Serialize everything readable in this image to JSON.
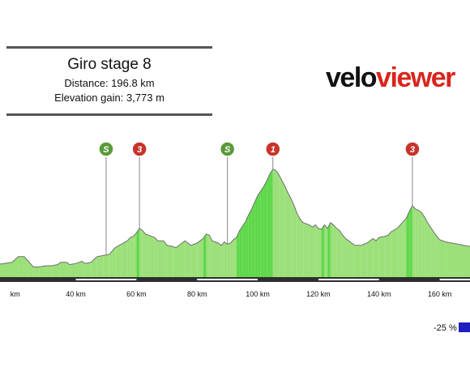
{
  "header": {
    "title": "Giro stage 8",
    "distance": "Distance: 196.8 km",
    "elevation_gain": "Elevation gain: 3,773 m"
  },
  "logo": {
    "part1": "velo",
    "part2": "viewer",
    "color_primary": "#111111",
    "color_accent": "#d9251d"
  },
  "legend": {
    "min_label": "-25 %",
    "min_color": "#1f1fc0"
  },
  "markers": [
    {
      "km": 50,
      "label": "S",
      "kind": "sprint",
      "color": "#5a9a3a"
    },
    {
      "km": 61,
      "label": "3",
      "kind": "climb",
      "color": "#c8342a"
    },
    {
      "km": 90,
      "label": "S",
      "kind": "sprint",
      "color": "#5a9a3a"
    },
    {
      "km": 105,
      "label": "1",
      "kind": "climb",
      "color": "#c8342a"
    },
    {
      "km": 151,
      "label": "3",
      "kind": "climb",
      "color": "#c8342a"
    }
  ],
  "chart_data": {
    "type": "area",
    "title": "Giro stage 8",
    "xlabel": "",
    "ylabel": "",
    "x_unit": "km",
    "xlim": [
      15,
      170
    ],
    "x_ticks": [
      {
        "value": 20,
        "label": "km"
      },
      {
        "value": 40,
        "label": "40 km"
      },
      {
        "value": 60,
        "label": "60 km"
      },
      {
        "value": 80,
        "label": "80 km"
      },
      {
        "value": 100,
        "label": "100 km"
      },
      {
        "value": 120,
        "label": "120 km"
      },
      {
        "value": 140,
        "label": "140 km"
      },
      {
        "value": 160,
        "label": "160 km"
      }
    ],
    "profile": [
      [
        15,
        0.23
      ],
      [
        19,
        0.26
      ],
      [
        21,
        0.36
      ],
      [
        23,
        0.36
      ],
      [
        24,
        0.3
      ],
      [
        26,
        0.18
      ],
      [
        28,
        0.18
      ],
      [
        30,
        0.2
      ],
      [
        32,
        0.2
      ],
      [
        34,
        0.22
      ],
      [
        35,
        0.26
      ],
      [
        37,
        0.26
      ],
      [
        38,
        0.22
      ],
      [
        40,
        0.24
      ],
      [
        42,
        0.28
      ],
      [
        43,
        0.24
      ],
      [
        45,
        0.26
      ],
      [
        47,
        0.36
      ],
      [
        49,
        0.38
      ],
      [
        51,
        0.4
      ],
      [
        52,
        0.46
      ],
      [
        53,
        0.52
      ],
      [
        55,
        0.58
      ],
      [
        57,
        0.64
      ],
      [
        58,
        0.7
      ],
      [
        59,
        0.72
      ],
      [
        60,
        0.78
      ],
      [
        61,
        0.86
      ],
      [
        62,
        0.82
      ],
      [
        63,
        0.76
      ],
      [
        64,
        0.74
      ],
      [
        66,
        0.7
      ],
      [
        67,
        0.64
      ],
      [
        69,
        0.64
      ],
      [
        70,
        0.56
      ],
      [
        72,
        0.54
      ],
      [
        73,
        0.52
      ],
      [
        75,
        0.6
      ],
      [
        76,
        0.64
      ],
      [
        77,
        0.6
      ],
      [
        78,
        0.56
      ],
      [
        80,
        0.6
      ],
      [
        81,
        0.64
      ],
      [
        82,
        0.68
      ],
      [
        83,
        0.76
      ],
      [
        84,
        0.74
      ],
      [
        85,
        0.64
      ],
      [
        87,
        0.6
      ],
      [
        88,
        0.56
      ],
      [
        89,
        0.62
      ],
      [
        90,
        0.58
      ],
      [
        91,
        0.6
      ],
      [
        92,
        0.66
      ],
      [
        93,
        0.7
      ],
      [
        94,
        0.82
      ],
      [
        95,
        0.9
      ],
      [
        96,
        0.98
      ],
      [
        97,
        1.1
      ],
      [
        98,
        1.2
      ],
      [
        99,
        1.32
      ],
      [
        100,
        1.44
      ],
      [
        101,
        1.52
      ],
      [
        102,
        1.6
      ],
      [
        103,
        1.7
      ],
      [
        104,
        1.82
      ],
      [
        105,
        1.9
      ],
      [
        106,
        1.88
      ],
      [
        107,
        1.8
      ],
      [
        108,
        1.7
      ],
      [
        109,
        1.6
      ],
      [
        110,
        1.48
      ],
      [
        111,
        1.38
      ],
      [
        112,
        1.26
      ],
      [
        113,
        1.12
      ],
      [
        114,
        1.02
      ],
      [
        115,
        0.96
      ],
      [
        116,
        0.94
      ],
      [
        117,
        0.92
      ],
      [
        118,
        0.88
      ],
      [
        119,
        0.92
      ],
      [
        120,
        0.86
      ],
      [
        121,
        0.84
      ],
      [
        122,
        0.92
      ],
      [
        123,
        0.86
      ],
      [
        124,
        0.96
      ],
      [
        125,
        0.92
      ],
      [
        126,
        0.86
      ],
      [
        127,
        0.82
      ],
      [
        128,
        0.74
      ],
      [
        129,
        0.68
      ],
      [
        130,
        0.64
      ],
      [
        131,
        0.6
      ],
      [
        132,
        0.56
      ],
      [
        134,
        0.56
      ],
      [
        136,
        0.6
      ],
      [
        138,
        0.68
      ],
      [
        139,
        0.64
      ],
      [
        140,
        0.7
      ],
      [
        142,
        0.72
      ],
      [
        143,
        0.74
      ],
      [
        144,
        0.8
      ],
      [
        146,
        0.86
      ],
      [
        147,
        0.92
      ],
      [
        148,
        0.98
      ],
      [
        149,
        1.04
      ],
      [
        150,
        1.16
      ],
      [
        151,
        1.26
      ],
      [
        152,
        1.2
      ],
      [
        153,
        1.18
      ],
      [
        154,
        1.14
      ],
      [
        155,
        1.06
      ],
      [
        156,
        0.96
      ],
      [
        157,
        0.88
      ],
      [
        158,
        0.8
      ],
      [
        159,
        0.72
      ],
      [
        160,
        0.66
      ],
      [
        162,
        0.62
      ],
      [
        164,
        0.6
      ],
      [
        166,
        0.58
      ],
      [
        168,
        0.56
      ],
      [
        170,
        0.54
      ]
    ],
    "grid": false,
    "legend_position": "bottom-right"
  }
}
